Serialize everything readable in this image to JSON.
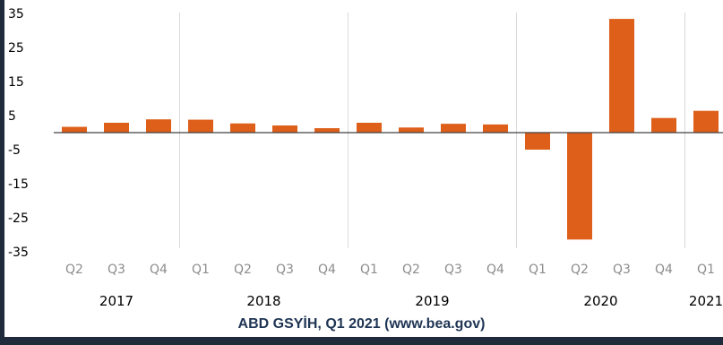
{
  "chart_data": {
    "type": "bar",
    "categories": [
      "Q2",
      "Q3",
      "Q4",
      "Q1",
      "Q2",
      "Q3",
      "Q4",
      "Q1",
      "Q2",
      "Q3",
      "Q4",
      "Q1",
      "Q2",
      "Q3",
      "Q4",
      "Q1"
    ],
    "years": [
      {
        "label": "2017",
        "start": 0,
        "end": 2
      },
      {
        "label": "2018",
        "start": 3,
        "end": 6
      },
      {
        "label": "2019",
        "start": 7,
        "end": 10
      },
      {
        "label": "2020",
        "start": 11,
        "end": 14
      },
      {
        "label": "2021",
        "start": 15,
        "end": 15
      }
    ],
    "values": [
      1.7,
      2.9,
      3.9,
      3.8,
      2.7,
      2.1,
      1.3,
      2.9,
      1.5,
      2.6,
      2.4,
      -5.0,
      -31.4,
      33.4,
      4.3,
      6.4
    ],
    "yticks": [
      35,
      25,
      15,
      5,
      -5,
      -15,
      -25,
      -35
    ],
    "ylim": [
      -35,
      35
    ],
    "bar_color": "#dd5f1a",
    "title": "",
    "xlabel": "",
    "ylabel": "",
    "grid": "vertical year separators"
  },
  "caption": "ABD GSYİH, Q1 2021 (www.bea.gov)"
}
